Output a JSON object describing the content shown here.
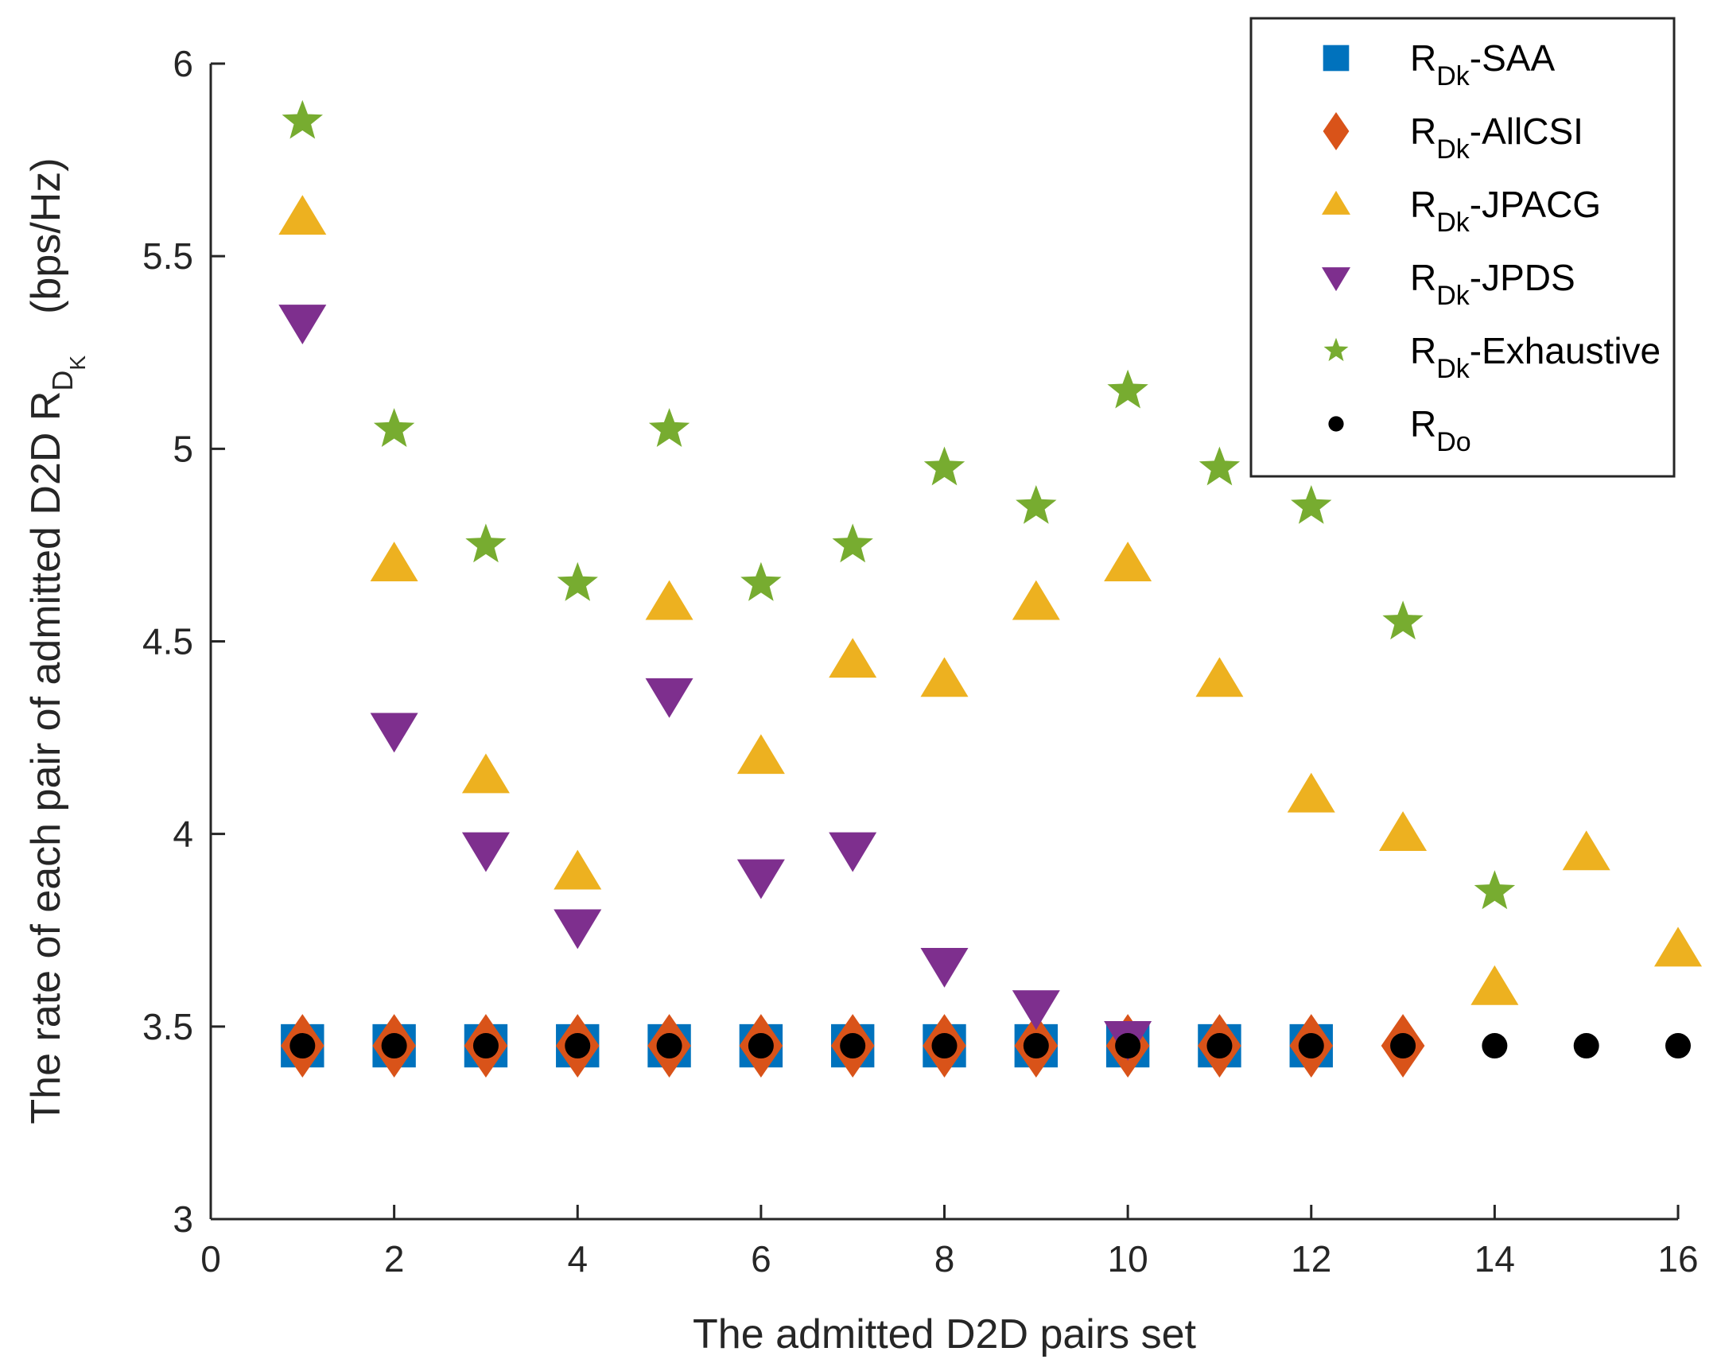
{
  "chart_data": {
    "type": "scatter",
    "title": "",
    "xlabel": "The admitted D2D pairs set",
    "ylabel": {
      "main": "The rate of each pair of admitted D2D R",
      "sub1": "D",
      "sub2": "K",
      "unit": "(bps/Hz)"
    },
    "xlim": [
      0,
      16
    ],
    "ylim": [
      3,
      6
    ],
    "xticks": [
      "0",
      "2",
      "4",
      "6",
      "8",
      "10",
      "12",
      "14",
      "16"
    ],
    "yticks": [
      "3",
      "3.5",
      "4",
      "4.5",
      "5",
      "5.5",
      "6"
    ],
    "grid": false,
    "legend_position": "top-right",
    "series": [
      {
        "name": "R_Dk-SAA",
        "label_main": "R",
        "label_sub": "Dk",
        "label_suffix": "-SAA",
        "marker": "square",
        "color": "#0072BD",
        "x": [
          1,
          2,
          3,
          4,
          5,
          6,
          7,
          8,
          9,
          10,
          11,
          12
        ],
        "y": [
          3.45,
          3.45,
          3.45,
          3.45,
          3.45,
          3.45,
          3.45,
          3.45,
          3.45,
          3.45,
          3.45,
          3.45
        ]
      },
      {
        "name": "R_Dk-AllCSI",
        "label_main": "R",
        "label_sub": "Dk",
        "label_suffix": "-AllCSI",
        "marker": "diamond",
        "color": "#D95319",
        "x": [
          1,
          2,
          3,
          4,
          5,
          6,
          7,
          8,
          9,
          10,
          11,
          12,
          13
        ],
        "y": [
          3.45,
          3.45,
          3.45,
          3.45,
          3.45,
          3.45,
          3.45,
          3.45,
          3.45,
          3.45,
          3.45,
          3.45,
          3.45
        ]
      },
      {
        "name": "R_Dk-JPACG",
        "label_main": "R",
        "label_sub": "Dk",
        "label_suffix": "-JPACG",
        "marker": "triangle-up",
        "color": "#EDB120",
        "x": [
          1,
          2,
          3,
          4,
          5,
          6,
          7,
          8,
          9,
          10,
          11,
          12,
          13,
          14,
          15,
          16
        ],
        "y": [
          5.6,
          4.7,
          4.15,
          3.9,
          4.6,
          4.2,
          4.45,
          4.4,
          4.6,
          4.7,
          4.4,
          4.1,
          4.0,
          3.6,
          3.95,
          3.7
        ]
      },
      {
        "name": "R_Dk-JPDS",
        "label_main": "R",
        "label_sub": "Dk",
        "label_suffix": "-JPDS",
        "marker": "triangle-down",
        "color": "#7E2F8E",
        "x": [
          1,
          2,
          3,
          4,
          5,
          6,
          7,
          8,
          9,
          10
        ],
        "y": [
          5.33,
          4.27,
          3.96,
          3.76,
          4.36,
          3.89,
          3.96,
          3.66,
          3.55,
          3.47
        ]
      },
      {
        "name": "R_Dk-Exhaustive",
        "label_main": "R",
        "label_sub": "Dk",
        "label_suffix": "-Exhaustive",
        "marker": "star",
        "color": "#77AC30",
        "x": [
          1,
          2,
          3,
          4,
          5,
          6,
          7,
          8,
          9,
          10,
          11,
          12,
          13,
          14
        ],
        "y": [
          5.85,
          5.05,
          4.75,
          4.65,
          5.05,
          4.65,
          4.75,
          4.95,
          4.85,
          5.15,
          4.95,
          4.85,
          4.55,
          3.85
        ]
      },
      {
        "name": "R_Do",
        "label_main": "R",
        "label_sub": "Do",
        "label_suffix": "",
        "marker": "circle",
        "color": "#000000",
        "x": [
          1,
          2,
          3,
          4,
          5,
          6,
          7,
          8,
          9,
          10,
          11,
          12,
          13,
          14,
          15,
          16
        ],
        "y": [
          3.45,
          3.45,
          3.45,
          3.45,
          3.45,
          3.45,
          3.45,
          3.45,
          3.45,
          3.45,
          3.45,
          3.45,
          3.45,
          3.45,
          3.45,
          3.45
        ]
      }
    ]
  }
}
